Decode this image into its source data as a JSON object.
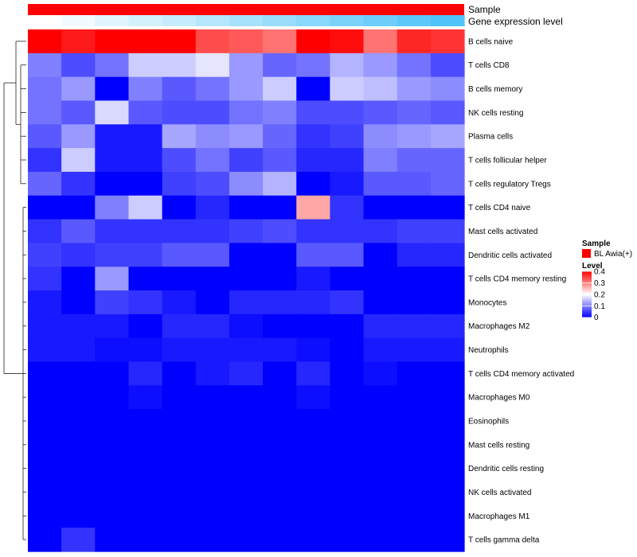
{
  "chart_data": {
    "type": "heatmap",
    "title": "",
    "annotation_tracks": [
      {
        "name": "Sample",
        "legend_title": "Sample",
        "legend_entries": [
          {
            "label": "BL Awia(+)",
            "color": "#ff0000"
          }
        ]
      },
      {
        "name": "Gene expression level"
      }
    ],
    "gene_expression_level_track": [
      0.0,
      0.08,
      0.17,
      0.25,
      0.33,
      0.42,
      0.5,
      0.58,
      0.67,
      0.75,
      0.83,
      0.92,
      1.0
    ],
    "rows": [
      "B cells naive",
      "T cells CD8",
      "B cells memory",
      "NK cells resting",
      "Plasma cells",
      "T cells follicular helper",
      "T cells regulatory  Tregs",
      "T cells CD4 naive",
      "Mast cells activated",
      "Dendritic cells activated",
      "T cells CD4 memory resting",
      "Monocytes",
      "Macrophages M2",
      "Neutrophils",
      "T cells CD4 memory activated",
      "Macrophages M0",
      "Eosinophils",
      "Mast cells resting",
      "Dendritic cells resting",
      "NK cells activated",
      "Macrophages M1",
      "T cells gamma delta"
    ],
    "n_columns": 13,
    "values": [
      [
        0.43,
        0.38,
        0.43,
        0.43,
        0.42,
        0.34,
        0.33,
        0.31,
        0.41,
        0.39,
        0.31,
        0.37,
        0.36
      ],
      [
        0.1,
        0.06,
        0.09,
        0.16,
        0.16,
        0.18,
        0.12,
        0.08,
        0.09,
        0.14,
        0.12,
        0.09,
        0.06
      ],
      [
        0.09,
        0.12,
        0.0,
        0.1,
        0.07,
        0.09,
        0.12,
        0.16,
        0.0,
        0.16,
        0.15,
        0.12,
        0.11
      ],
      [
        0.09,
        0.07,
        0.17,
        0.07,
        0.06,
        0.06,
        0.09,
        0.1,
        0.06,
        0.06,
        0.07,
        0.08,
        0.07
      ],
      [
        0.07,
        0.12,
        0.02,
        0.02,
        0.13,
        0.11,
        0.12,
        0.08,
        0.04,
        0.05,
        0.11,
        0.12,
        0.13
      ],
      [
        0.04,
        0.16,
        0.02,
        0.02,
        0.06,
        0.09,
        0.05,
        0.07,
        0.03,
        0.03,
        0.1,
        0.08,
        0.08
      ],
      [
        0.08,
        0.04,
        0.0,
        0.0,
        0.05,
        0.06,
        0.11,
        0.14,
        0.0,
        0.02,
        0.07,
        0.07,
        0.08
      ],
      [
        0.0,
        0.0,
        0.1,
        0.16,
        0.0,
        0.03,
        0.0,
        0.0,
        0.27,
        0.04,
        0.0,
        0.0,
        0.0
      ],
      [
        0.04,
        0.07,
        0.04,
        0.04,
        0.04,
        0.04,
        0.05,
        0.06,
        0.04,
        0.04,
        0.04,
        0.05,
        0.05
      ],
      [
        0.05,
        0.04,
        0.05,
        0.05,
        0.07,
        0.07,
        0.0,
        0.0,
        0.07,
        0.07,
        0.0,
        0.03,
        0.03
      ],
      [
        0.04,
        0.0,
        0.12,
        0.0,
        0.0,
        0.0,
        0.0,
        0.0,
        0.02,
        0.0,
        0.0,
        0.0,
        0.0
      ],
      [
        0.02,
        0.0,
        0.05,
        0.04,
        0.02,
        0.0,
        0.03,
        0.03,
        0.03,
        0.04,
        0.0,
        0.0,
        0.0
      ],
      [
        0.02,
        0.02,
        0.02,
        0.0,
        0.03,
        0.03,
        0.01,
        0.0,
        0.0,
        0.0,
        0.03,
        0.03,
        0.03
      ],
      [
        0.02,
        0.02,
        0.01,
        0.01,
        0.02,
        0.02,
        0.02,
        0.02,
        0.01,
        0.0,
        0.02,
        0.02,
        0.02
      ],
      [
        0.0,
        0.0,
        0.0,
        0.03,
        0.0,
        0.02,
        0.03,
        0.0,
        0.03,
        0.0,
        0.01,
        0.0,
        0.0
      ],
      [
        0.0,
        0.0,
        0.0,
        0.01,
        0.0,
        0.0,
        0.0,
        0.0,
        0.01,
        0.0,
        0.0,
        0.0,
        0.0
      ],
      [
        0.0,
        0.0,
        0.0,
        0.0,
        0.0,
        0.0,
        0.0,
        0.0,
        0.0,
        0.0,
        0.0,
        0.0,
        0.0
      ],
      [
        0.0,
        0.0,
        0.0,
        0.0,
        0.0,
        0.0,
        0.0,
        0.0,
        0.0,
        0.0,
        0.0,
        0.0,
        0.0
      ],
      [
        0.0,
        0.0,
        0.0,
        0.0,
        0.0,
        0.0,
        0.0,
        0.0,
        0.0,
        0.0,
        0.0,
        0.0,
        0.0
      ],
      [
        0.0,
        0.0,
        0.0,
        0.0,
        0.0,
        0.0,
        0.0,
        0.0,
        0.0,
        0.0,
        0.0,
        0.0,
        0.0
      ],
      [
        0.0,
        0.0,
        0.0,
        0.0,
        0.0,
        0.0,
        0.0,
        0.0,
        0.0,
        0.0,
        0.0,
        0.0,
        0.0
      ],
      [
        0.0,
        0.04,
        0.0,
        0.0,
        0.0,
        0.0,
        0.0,
        0.0,
        0.0,
        0.0,
        0.0,
        0.0,
        0.0
      ]
    ],
    "color_legend": {
      "title": "Level",
      "ticks": [
        0,
        0.1,
        0.2,
        0.3,
        0.4
      ],
      "tick_labels": [
        "0",
        "0.1",
        "0.2",
        "0.3",
        "0.4"
      ],
      "range": [
        0,
        0.4
      ],
      "colors": {
        "low": "#0000ff",
        "mid": "#ffffff",
        "high": "#ff0000"
      }
    },
    "sample_track_color": "#ff0000",
    "expression_track_colors": {
      "low": "#ffffff",
      "high": "#4fc3f7"
    },
    "row_dendrogram": true
  }
}
